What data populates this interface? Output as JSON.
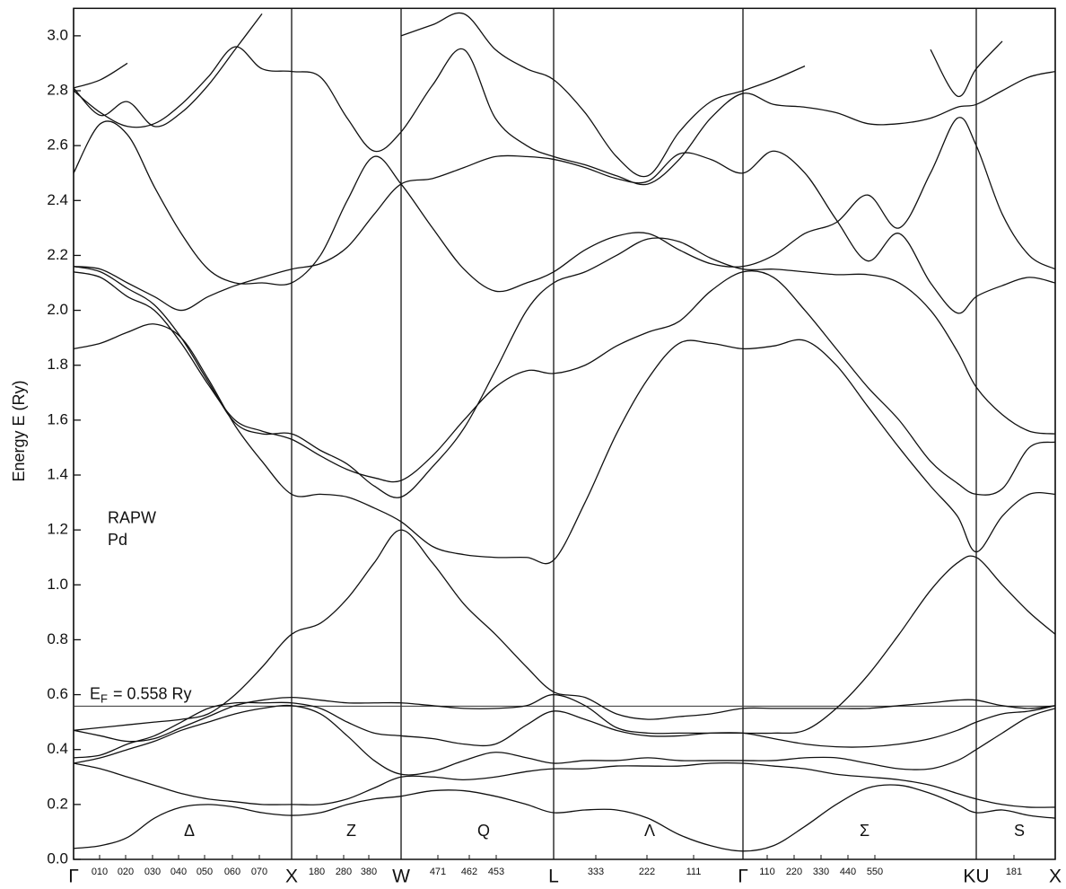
{
  "chart_data": {
    "type": "line",
    "y_label": "Energy E (Ry)",
    "xlim": [
      0,
      1094
    ],
    "ylim": [
      0,
      3.1
    ],
    "grid": true,
    "xticks": [
      {
        "value": 0,
        "label": "Γ"
      },
      {
        "value": 243,
        "label": "X"
      },
      {
        "value": 365,
        "label": "W"
      },
      {
        "value": 535,
        "label": "L"
      },
      {
        "value": 746,
        "label": "Γ"
      },
      {
        "value": 1006,
        "label": "KU"
      },
      {
        "value": 1094,
        "label": "X"
      }
    ],
    "xminorticks": [
      {
        "value": 29,
        "label": "010"
      },
      {
        "value": 58,
        "label": "020"
      },
      {
        "value": 88,
        "label": "030"
      },
      {
        "value": 117,
        "label": "040"
      },
      {
        "value": 146,
        "label": "050"
      },
      {
        "value": 177,
        "label": "060"
      },
      {
        "value": 207,
        "label": "070"
      },
      {
        "value": 271,
        "label": "180"
      },
      {
        "value": 301,
        "label": "280"
      },
      {
        "value": 329,
        "label": "380"
      },
      {
        "value": 406,
        "label": "471"
      },
      {
        "value": 441,
        "label": "462"
      },
      {
        "value": 471,
        "label": "453"
      },
      {
        "value": 582,
        "label": "333"
      },
      {
        "value": 639,
        "label": "222"
      },
      {
        "value": 691,
        "label": "111"
      },
      {
        "value": 773,
        "label": "110"
      },
      {
        "value": 803,
        "label": "220"
      },
      {
        "value": 833,
        "label": "330"
      },
      {
        "value": 863,
        "label": "440"
      },
      {
        "value": 893,
        "label": "550"
      },
      {
        "value": 1048,
        "label": "181"
      }
    ],
    "yticks": [
      {
        "value": 0,
        "label": "0.0"
      },
      0.2,
      0.4,
      0.6,
      0.8,
      {
        "value": 1,
        "label": "1.0"
      },
      1.2,
      1.4,
      1.6,
      1.8,
      {
        "value": 2,
        "label": "2.0"
      },
      2.2,
      2.4,
      2.6,
      2.8,
      {
        "value": 3,
        "label": "3.0"
      }
    ],
    "fermi_energy": 0.558,
    "fermi_label": {
      "symbol": "E",
      "subscript": "F",
      "text": "= 0.558 Ry",
      "x": 18,
      "y": 0.6
    },
    "annotations": [
      {
        "text": "RAPW",
        "x": 38,
        "y": 1.24
      },
      {
        "text": "Pd",
        "x": 38,
        "y": 1.16
      },
      {
        "text": "Δ",
        "x": 123,
        "y": 0.1
      },
      {
        "text": "Z",
        "x": 304,
        "y": 0.1
      },
      {
        "text": "Q",
        "x": 450,
        "y": 0.1
      },
      {
        "text": "Λ",
        "x": 636,
        "y": 0.1
      },
      {
        "text": "Σ",
        "x": 876,
        "y": 0.1
      },
      {
        "text": "S",
        "x": 1048,
        "y": 0.1
      }
    ],
    "x": [
      0,
      30,
      60,
      90,
      120,
      150,
      180,
      210,
      243,
      275,
      305,
      335,
      365,
      400,
      435,
      470,
      505,
      535,
      570,
      605,
      640,
      675,
      710,
      746,
      780,
      815,
      850,
      885,
      920,
      955,
      985,
      1006,
      1035,
      1065,
      1094
    ],
    "series": [
      {
        "color": "#111111",
        "values": [
          0.04,
          0.05,
          0.08,
          0.15,
          0.19,
          0.2,
          0.19,
          0.17,
          0.16,
          0.17,
          0.2,
          0.22,
          0.23,
          0.25,
          0.25,
          0.23,
          0.2,
          0.17,
          0.18,
          0.18,
          0.15,
          0.09,
          0.05,
          0.03,
          0.05,
          0.12,
          0.2,
          0.26,
          0.27,
          0.24,
          0.2,
          0.17,
          0.18,
          0.16,
          0.15
        ]
      },
      {
        "color": "#111111",
        "values": [
          0.35,
          0.33,
          0.3,
          0.27,
          0.24,
          0.22,
          0.21,
          0.2,
          0.2,
          0.2,
          0.22,
          0.26,
          0.3,
          0.3,
          0.29,
          0.3,
          0.32,
          0.33,
          0.33,
          0.34,
          0.34,
          0.34,
          0.35,
          0.35,
          0.34,
          0.33,
          0.31,
          0.3,
          0.29,
          0.27,
          0.24,
          0.22,
          0.2,
          0.19,
          0.19
        ]
      },
      {
        "color": "#111111",
        "values": [
          0.35,
          0.37,
          0.4,
          0.43,
          0.47,
          0.5,
          0.53,
          0.55,
          0.56,
          0.53,
          0.45,
          0.36,
          0.31,
          0.32,
          0.36,
          0.39,
          0.37,
          0.35,
          0.36,
          0.36,
          0.37,
          0.36,
          0.36,
          0.36,
          0.36,
          0.37,
          0.37,
          0.35,
          0.33,
          0.33,
          0.36,
          0.4,
          0.46,
          0.52,
          0.55
        ]
      },
      {
        "color": "#111111",
        "values": [
          0.37,
          0.38,
          0.42,
          0.45,
          0.5,
          0.55,
          0.57,
          0.57,
          0.57,
          0.55,
          0.5,
          0.46,
          0.45,
          0.44,
          0.42,
          0.42,
          0.49,
          0.54,
          0.51,
          0.47,
          0.45,
          0.45,
          0.46,
          0.46,
          0.44,
          0.42,
          0.41,
          0.41,
          0.42,
          0.44,
          0.47,
          0.5,
          0.53,
          0.54,
          0.56
        ]
      },
      {
        "color": "#111111",
        "values": [
          0.47,
          0.45,
          0.43,
          0.44,
          0.48,
          0.52,
          0.56,
          0.58,
          0.59,
          0.58,
          0.57,
          0.57,
          0.57,
          0.56,
          0.55,
          0.55,
          0.56,
          0.6,
          0.56,
          0.48,
          0.46,
          0.46,
          0.46,
          0.46,
          0.46,
          0.47,
          0.55,
          0.67,
          0.82,
          0.98,
          1.08,
          1.1,
          1.0,
          0.9,
          0.82
        ]
      },
      {
        "color": "#111111",
        "values": [
          0.47,
          0.48,
          0.49,
          0.5,
          0.51,
          0.53,
          0.6,
          0.7,
          0.82,
          0.86,
          0.95,
          1.08,
          1.2,
          1.08,
          0.93,
          0.82,
          0.7,
          0.61,
          0.59,
          0.53,
          0.51,
          0.52,
          0.53,
          0.55,
          0.55,
          0.55,
          0.55,
          0.55,
          0.56,
          0.57,
          0.58,
          0.58,
          0.56,
          0.55,
          0.56
        ]
      },
      {
        "color": "#111111",
        "values": [
          1.86,
          1.88,
          1.92,
          1.95,
          1.9,
          1.75,
          1.58,
          1.45,
          1.33,
          1.33,
          1.32,
          1.28,
          1.23,
          1.14,
          1.11,
          1.1,
          1.1,
          1.09,
          1.3,
          1.55,
          1.75,
          1.88,
          1.88,
          1.86,
          1.87,
          1.89,
          1.8,
          1.65,
          1.5,
          1.36,
          1.25,
          1.12,
          1.25,
          1.33,
          1.33
        ]
      },
      {
        "color": "#111111",
        "values": [
          2.14,
          2.12,
          2.05,
          2.0,
          1.88,
          1.73,
          1.6,
          1.56,
          1.53,
          1.47,
          1.42,
          1.39,
          1.38,
          1.47,
          1.6,
          1.72,
          1.78,
          1.77,
          1.8,
          1.87,
          1.92,
          1.96,
          2.07,
          2.14,
          2.12,
          2.0,
          1.86,
          1.72,
          1.6,
          1.45,
          1.37,
          1.33,
          1.35,
          1.5,
          1.52
        ]
      },
      {
        "color": "#111111",
        "values": [
          2.16,
          2.14,
          2.08,
          2.02,
          1.9,
          1.74,
          1.59,
          1.55,
          1.55,
          1.49,
          1.44,
          1.36,
          1.32,
          1.43,
          1.57,
          1.78,
          2.0,
          2.1,
          2.14,
          2.2,
          2.26,
          2.25,
          2.19,
          2.15,
          2.15,
          2.14,
          2.13,
          2.13,
          2.1,
          2.0,
          1.85,
          1.72,
          1.62,
          1.56,
          1.55
        ]
      },
      {
        "color": "#111111",
        "values": [
          2.16,
          2.15,
          2.1,
          2.05,
          2.0,
          2.05,
          2.09,
          2.12,
          2.15,
          2.17,
          2.23,
          2.35,
          2.46,
          2.48,
          2.52,
          2.56,
          2.56,
          2.55,
          2.52,
          2.48,
          2.47,
          2.57,
          2.55,
          2.5,
          2.58,
          2.5,
          2.33,
          2.18,
          2.28,
          2.1,
          1.99,
          2.05,
          2.09,
          2.12,
          2.1
        ]
      },
      {
        "color": "#111111",
        "values": [
          2.5,
          2.68,
          2.64,
          2.45,
          2.28,
          2.15,
          2.1,
          2.1,
          2.1,
          2.2,
          2.4,
          2.56,
          2.46,
          2.3,
          2.15,
          2.07,
          2.1,
          2.14,
          2.22,
          2.27,
          2.28,
          2.22,
          2.17,
          2.16,
          2.2,
          2.28,
          2.32,
          2.42,
          2.3,
          2.5,
          2.7,
          2.6,
          2.35,
          2.2,
          2.15
        ]
      },
      {
        "color": "#111111",
        "values": [
          2.8,
          2.72,
          2.67,
          2.68,
          2.75,
          2.85,
          2.96,
          2.88,
          2.87,
          2.85,
          2.7,
          2.58,
          2.65,
          2.82,
          2.95,
          2.7,
          2.6,
          2.56,
          2.53,
          2.49,
          2.46,
          2.55,
          2.7,
          2.79,
          2.75,
          2.74,
          2.72,
          2.68,
          2.68,
          2.7,
          2.74,
          2.75,
          2.8,
          2.85,
          2.87
        ]
      },
      {
        "color": "#111111",
        "values": [
          2.81,
          2.71,
          2.76,
          2.67,
          2.72,
          2.82,
          2.95,
          3.08,
          null,
          null,
          null,
          null,
          3.0,
          3.04,
          3.08,
          2.95,
          2.88,
          2.84,
          2.72,
          2.56,
          2.49,
          2.65,
          2.76,
          2.8,
          2.84,
          2.89,
          null,
          null,
          null,
          2.95,
          2.78,
          2.88,
          2.98,
          null,
          null
        ]
      },
      {
        "color": "#111111",
        "values": [
          2.81,
          2.84,
          2.9,
          null,
          null,
          null,
          null,
          null,
          null,
          null,
          null,
          null,
          null,
          null,
          null,
          null,
          null,
          null,
          null,
          null,
          null,
          null,
          null,
          null,
          null,
          null,
          null,
          null,
          null,
          null,
          null,
          null,
          null,
          null,
          null
        ]
      }
    ]
  }
}
